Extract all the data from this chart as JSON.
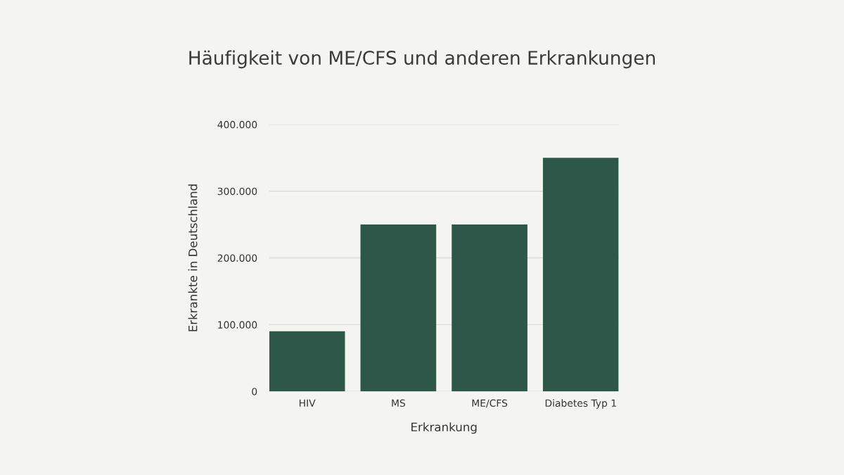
{
  "chart_data": {
    "type": "bar",
    "title": "Häufigkeit von ME/CFS und anderen Erkrankungen",
    "xlabel": "Erkrankung",
    "ylabel": "Erkrankte in Deutschland",
    "categories": [
      "HIV",
      "MS",
      "ME/CFS",
      "Diabetes Typ 1"
    ],
    "values": [
      90000,
      250000,
      250000,
      350000
    ],
    "color": "#2d5748",
    "ylim": [
      0,
      400000
    ],
    "yticks": [
      0,
      {
        "value": 100000,
        "label": "100.000"
      },
      {
        "value": 200000,
        "label": "200.000"
      },
      {
        "value": 300000,
        "label": "300.000"
      },
      {
        "value": 400000,
        "label": "400.000"
      }
    ],
    "grid": "y"
  }
}
